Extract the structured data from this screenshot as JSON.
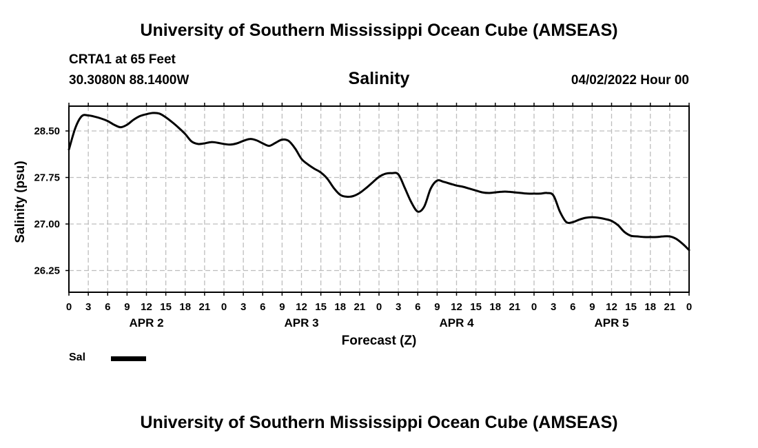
{
  "header": {
    "title": "University of Southern Mississippi Ocean Cube (AMSEAS)",
    "station": "CRTA1 at 65 Feet",
    "coords": "30.3080N  88.1400W",
    "run_time": "04/02/2022 Hour 00"
  },
  "footer": {
    "title": "University of Southern Mississippi Ocean Cube (AMSEAS)"
  },
  "legend": {
    "label": "Sal",
    "color": "#000000"
  },
  "chart_data": {
    "type": "line",
    "title": "Salinity",
    "xlabel": "Forecast (Z)",
    "ylabel": "Salinity (psu)",
    "xlim": [
      0,
      96
    ],
    "ylim": [
      25.9,
      28.9
    ],
    "yticks": [
      "28.50",
      "27.75",
      "27.00",
      "26.25"
    ],
    "ytick_values": [
      28.5,
      27.75,
      27.0,
      26.25
    ],
    "xtick_labels": [
      "0",
      "3",
      "6",
      "9",
      "12",
      "15",
      "18",
      "21",
      "0",
      "3",
      "6",
      "9",
      "12",
      "15",
      "18",
      "21",
      "0",
      "3",
      "6",
      "9",
      "12",
      "15",
      "18",
      "21",
      "0",
      "3",
      "6",
      "9",
      "12",
      "15",
      "18",
      "21",
      "0"
    ],
    "day_labels": [
      {
        "label": "APR 2",
        "hour": 12
      },
      {
        "label": "APR 3",
        "hour": 36
      },
      {
        "label": "APR 4",
        "hour": 60
      },
      {
        "label": "APR 5",
        "hour": 84
      }
    ],
    "grid": true,
    "series": [
      {
        "name": "Sal",
        "color": "#000000",
        "x": [
          0,
          1,
          2,
          3,
          4,
          5,
          6,
          7,
          8,
          9,
          10,
          11,
          12,
          13,
          14,
          15,
          16,
          17,
          18,
          19,
          20,
          21,
          22,
          23,
          24,
          25,
          26,
          27,
          28,
          29,
          30,
          31,
          32,
          33,
          34,
          35,
          36,
          37,
          38,
          39,
          40,
          41,
          42,
          43,
          44,
          45,
          46,
          47,
          48,
          49,
          50,
          51,
          52,
          53,
          54,
          55,
          56,
          57,
          58,
          59,
          60,
          61,
          62,
          63,
          64,
          65,
          66,
          67,
          68,
          69,
          70,
          71,
          72,
          73,
          74,
          75,
          76,
          77,
          78,
          79,
          80,
          81,
          82,
          83,
          84,
          85,
          86,
          87,
          88,
          89,
          90,
          91,
          92,
          93,
          94,
          95,
          96
        ],
        "values": [
          28.2,
          28.55,
          28.74,
          28.75,
          28.73,
          28.7,
          28.66,
          28.6,
          28.56,
          28.6,
          28.68,
          28.74,
          28.77,
          28.79,
          28.78,
          28.72,
          28.64,
          28.55,
          28.45,
          28.33,
          28.29,
          28.3,
          28.32,
          28.31,
          28.29,
          28.28,
          28.3,
          28.34,
          28.37,
          28.35,
          28.3,
          28.26,
          28.31,
          28.36,
          28.34,
          28.22,
          28.05,
          27.96,
          27.89,
          27.83,
          27.73,
          27.58,
          27.47,
          27.44,
          27.45,
          27.5,
          27.58,
          27.67,
          27.76,
          27.81,
          27.82,
          27.8,
          27.58,
          27.35,
          27.2,
          27.28,
          27.57,
          27.7,
          27.68,
          27.65,
          27.62,
          27.6,
          27.57,
          27.54,
          27.51,
          27.5,
          27.51,
          27.52,
          27.52,
          27.51,
          27.5,
          27.49,
          27.49,
          27.49,
          27.5,
          27.46,
          27.2,
          27.03,
          27.03,
          27.07,
          27.1,
          27.11,
          27.1,
          27.08,
          27.05,
          26.98,
          26.87,
          26.81,
          26.8,
          26.79,
          26.79,
          26.79,
          26.8,
          26.8,
          26.76,
          26.68,
          26.58
        ]
      }
    ]
  }
}
